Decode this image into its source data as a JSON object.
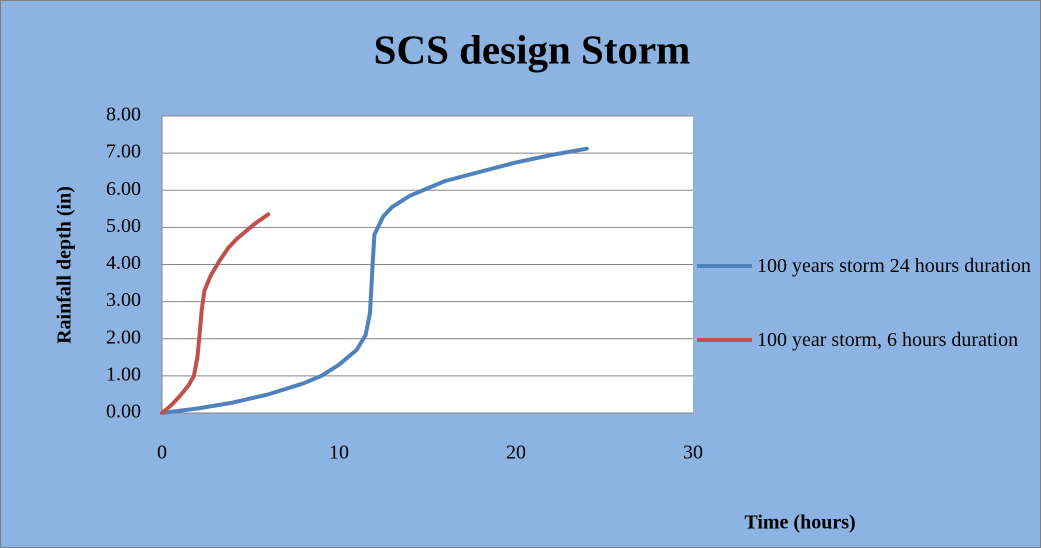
{
  "chart_data": {
    "type": "line",
    "title": "SCS design Storm",
    "xlabel": "Time (hours)",
    "ylabel": "Rainfall depth (in)",
    "xlim": [
      0,
      30
    ],
    "xticks": [
      0,
      10,
      20,
      30
    ],
    "ylim": [
      0,
      8
    ],
    "yticks": [
      {
        "value": 0,
        "label": "0.00"
      },
      {
        "value": 1,
        "label": "1.00"
      },
      {
        "value": 2,
        "label": "2.00"
      },
      {
        "value": 3,
        "label": "3.00"
      },
      {
        "value": 4,
        "label": "4.00"
      },
      {
        "value": 5,
        "label": "5.00"
      },
      {
        "value": 6,
        "label": "6.00"
      },
      {
        "value": 7,
        "label": "7.00"
      },
      {
        "value": 8,
        "label": "8.00"
      }
    ],
    "grid": true,
    "legend": "right",
    "series": [
      {
        "name": "100 years storm 24 hours duration",
        "color": "#4f81bd",
        "x": [
          0,
          2,
          4,
          6,
          8,
          9,
          10,
          11,
          11.5,
          11.75,
          11.9,
          12,
          12.5,
          13,
          14,
          15,
          16,
          18,
          20,
          22,
          24
        ],
        "values": [
          0,
          0.12,
          0.28,
          0.5,
          0.8,
          1.0,
          1.3,
          1.7,
          2.1,
          2.7,
          4.0,
          4.8,
          5.3,
          5.55,
          5.85,
          6.05,
          6.25,
          6.5,
          6.75,
          6.95,
          7.12
        ]
      },
      {
        "name": "100 year storm, 6 hours duration",
        "color": "#c0504d",
        "x": [
          0,
          0.5,
          1,
          1.5,
          1.8,
          2,
          2.1,
          2.25,
          2.4,
          2.75,
          3.25,
          3.75,
          4.25,
          4.75,
          5.25,
          6
        ],
        "values": [
          0,
          0.2,
          0.45,
          0.75,
          1.0,
          1.5,
          2.0,
          2.8,
          3.3,
          3.7,
          4.1,
          4.45,
          4.7,
          4.9,
          5.1,
          5.35
        ]
      }
    ]
  }
}
